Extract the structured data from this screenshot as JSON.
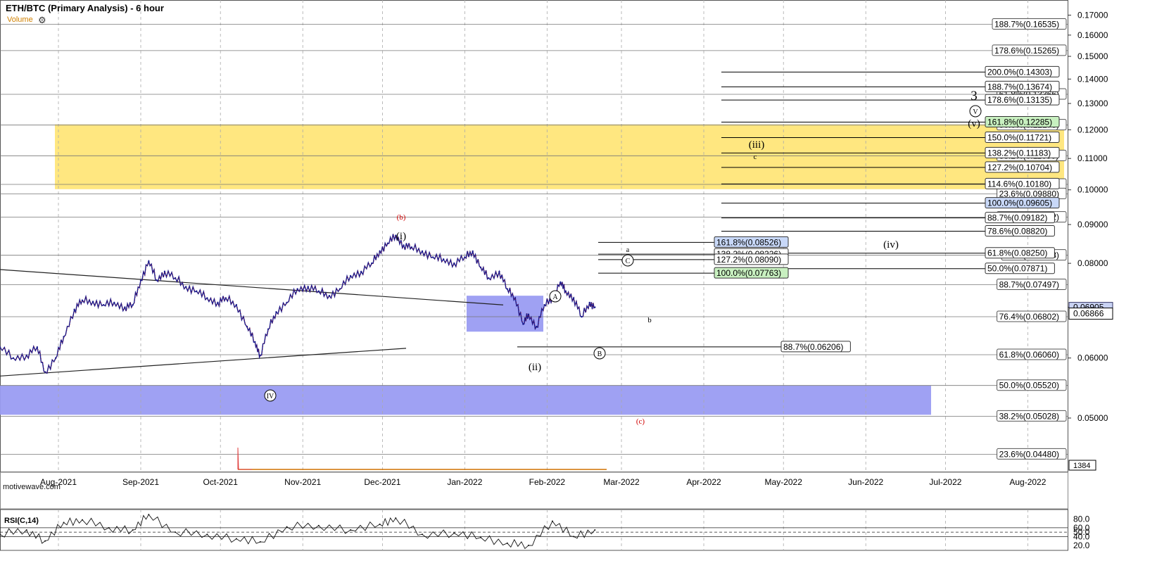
{
  "header": {
    "title": "ETH/BTC (Primary Analysis) - 6 hour",
    "volume_label": "Volume",
    "watermark": "motivewave.com"
  },
  "settings_icon": "gear-icon",
  "chart_data": [
    {
      "type": "line",
      "name": "price",
      "title": "ETH/BTC (Primary Analysis) - 6 hour",
      "x_ticks": [
        "Aug-2021",
        "Sep-2021",
        "Oct-2021",
        "Nov-2021",
        "Dec-2021",
        "Jan-2022",
        "Feb-2022",
        "Mar-2022",
        "Apr-2022",
        "May-2022",
        "Jun-2022",
        "Jul-2022",
        "Aug-2022"
      ],
      "y_ticks": [
        "0.17000",
        "0.16000",
        "0.15000",
        "0.14000",
        "0.13000",
        "0.12000",
        "0.11000",
        "0.10000",
        "0.09000",
        "0.08000",
        "0.07000",
        "0.06000",
        "0.05000"
      ],
      "y_scale": "log",
      "ylim": [
        0.0425,
        0.178
      ],
      "xlim": [
        "2021-07-10",
        "2022-08-16"
      ],
      "grid": true,
      "current_price": "0.06866",
      "price_tag_partial": "0.06905",
      "volume_tag": "1384",
      "series": [
        {
          "x": [
            "2021-07-10",
            "2021-07-15",
            "2021-07-20",
            "2021-07-24",
            "2021-07-27",
            "2021-07-31",
            "2021-08-03",
            "2021-08-07",
            "2021-08-10",
            "2021-08-14",
            "2021-08-18",
            "2021-08-22",
            "2021-08-26",
            "2021-08-29",
            "2021-09-01",
            "2021-09-04",
            "2021-09-07",
            "2021-09-10",
            "2021-09-14",
            "2021-09-18",
            "2021-09-22",
            "2021-09-26",
            "2021-09-30",
            "2021-10-03",
            "2021-10-07",
            "2021-10-11",
            "2021-10-14",
            "2021-10-16",
            "2021-10-19",
            "2021-10-22",
            "2021-10-26",
            "2021-10-30",
            "2021-11-03",
            "2021-11-07",
            "2021-11-11",
            "2021-11-15",
            "2021-11-19",
            "2021-11-23",
            "2021-11-27",
            "2021-11-30",
            "2021-12-03",
            "2021-12-06",
            "2021-12-09",
            "2021-12-12",
            "2021-12-16",
            "2021-12-20",
            "2021-12-24",
            "2021-12-28",
            "2022-01-01",
            "2022-01-04",
            "2022-01-07",
            "2022-01-10",
            "2022-01-14",
            "2022-01-17",
            "2022-01-20",
            "2022-01-23",
            "2022-01-25",
            "2022-01-28",
            "2022-01-31",
            "2022-02-03",
            "2022-02-06",
            "2022-02-08",
            "2022-02-11",
            "2022-02-14",
            "2022-02-17",
            "2022-02-19"
          ],
          "y": [
            0.062,
            0.06,
            0.0605,
            0.062,
            0.0575,
            0.06,
            0.064,
            0.0695,
            0.0715,
            0.0712,
            0.0705,
            0.071,
            0.07,
            0.0705,
            0.076,
            0.0805,
            0.076,
            0.078,
            0.0765,
            0.0745,
            0.0735,
            0.072,
            0.071,
            0.072,
            0.0705,
            0.066,
            0.063,
            0.0605,
            0.0655,
            0.069,
            0.071,
            0.074,
            0.0745,
            0.0735,
            0.0725,
            0.074,
            0.077,
            0.078,
            0.08,
            0.083,
            0.085,
            0.087,
            0.0845,
            0.084,
            0.083,
            0.0815,
            0.081,
            0.08,
            0.0815,
            0.083,
            0.079,
            0.0765,
            0.078,
            0.074,
            0.072,
            0.0665,
            0.0685,
            0.066,
            0.0705,
            0.072,
            0.0755,
            0.0735,
            0.072,
            0.068,
            0.071,
            0.07
          ]
        }
      ],
      "annotations": [
        {
          "text": "(b)",
          "color": "#d00000"
        },
        {
          "text": "(i)",
          "color": "#000000"
        },
        {
          "text": "(ii)",
          "color": "#000000"
        },
        {
          "text": "(iii)",
          "color": "#000000"
        },
        {
          "text": "(iv)",
          "color": "#000000"
        },
        {
          "text": "(v)",
          "color": "#000000"
        },
        {
          "text": "3",
          "color": "#000000"
        },
        {
          "text": "IV",
          "circled": true
        },
        {
          "text": "A",
          "circled": true
        },
        {
          "text": "B",
          "circled": true
        },
        {
          "text": "C",
          "circled": true
        },
        {
          "text": "V",
          "circled": true
        },
        {
          "text": "a",
          "color": "#000000"
        },
        {
          "text": "b",
          "color": "#000000"
        },
        {
          "text": "c",
          "color": "#000000"
        },
        {
          "text": "(c)",
          "color": "#d00000"
        }
      ],
      "fib_labels_right": [
        {
          "label": "188.7%(0.16535)",
          "y": 0.16535
        },
        {
          "label": "178.6%(0.15265)",
          "y": 0.15265
        },
        {
          "label": "61.8%(0.13366)",
          "y": 0.13366
        },
        {
          "label": "50.0%(0.12175)",
          "y": 0.12175
        },
        {
          "label": "38.2%(0.11090)",
          "y": 0.1109
        },
        {
          "label": "27.2%(0.10166)",
          "y": 0.10166
        },
        {
          "label": "23.6%(0.09880)",
          "y": 0.0988
        },
        {
          "label": "14.6%(0.09202)",
          "y": 0.09202
        },
        {
          "label": "0.0%(0.08198)",
          "y": 0.08198
        },
        {
          "label": "88.7%(0.07497)",
          "y": 0.07497
        },
        {
          "label": "76.4%(0.06802)",
          "y": 0.06802
        },
        {
          "label": "61.8%(0.06060)",
          "y": 0.0606
        },
        {
          "label": "50.0%(0.05520)",
          "y": 0.0552
        },
        {
          "label": "38.2%(0.05028)",
          "y": 0.05028
        },
        {
          "label": "23.6%(0.04480)",
          "y": 0.0448
        }
      ],
      "fib_labels_wave3": [
        {
          "label": "200.0%(0.14303)",
          "y": 0.14303
        },
        {
          "label": "188.7%(0.13674)",
          "y": 0.13674
        },
        {
          "label": "178.6%(0.13135)",
          "y": 0.13135
        },
        {
          "label": "161.8%(0.12285)",
          "y": 0.12285,
          "fill": "#c8f0c0"
        },
        {
          "label": "150.0%(0.11721)",
          "y": 0.11721
        },
        {
          "label": "138.2%(0.11183)",
          "y": 0.11183
        },
        {
          "label": "127.2%(0.10704)",
          "y": 0.10704
        },
        {
          "label": "114.6%(0.10180)",
          "y": 0.1018
        },
        {
          "label": "100.0%(0.09605)",
          "y": 0.09605,
          "fill": "#c8d8f8"
        },
        {
          "label": "88.7%(0.09182)",
          "y": 0.09182
        },
        {
          "label": "78.6%(0.08820)",
          "y": 0.0882
        },
        {
          "label": "61.8%(0.08250)",
          "y": 0.0825
        },
        {
          "label": "50.0%(0.07871)",
          "y": 0.07871
        }
      ],
      "fib_labels_c": [
        {
          "label": "161.8%(0.08526)",
          "y": 0.08526,
          "fill": "#c8d8f8"
        },
        {
          "label": "138.2%(0.08226)",
          "y": 0.08226
        },
        {
          "label": "127.2%(0.08090)",
          "y": 0.0809
        },
        {
          "label": "100.0%(0.07763)",
          "y": 0.07763,
          "fill": "#c8f0c0"
        }
      ],
      "fib_label_ii": {
        "label": "88.7%(0.06206)",
        "y": 0.06206
      },
      "zones": [
        {
          "name": "yellow-target-zone",
          "y_range": [
            0.1002,
            0.122
          ],
          "color": "#ffe36a"
        },
        {
          "name": "blue-support-zone",
          "y_range": [
            0.0505,
            0.0552
          ],
          "color": "#9a9cf2"
        },
        {
          "name": "blue-wave-ii-box",
          "y_range": [
            0.065,
            0.0725
          ],
          "color": "#9a9cf2"
        }
      ]
    },
    {
      "type": "line",
      "name": "rsi",
      "title": "RSI(C,14)",
      "y_ticks": [
        "80.0",
        "60.0",
        "50.0",
        "40.0",
        "20.0"
      ],
      "ylim": [
        15,
        95
      ],
      "levels": [
        60,
        50,
        40
      ],
      "series": [
        {
          "x": [
            "2021-07-10",
            "2021-07-20",
            "2021-07-27",
            "2021-08-03",
            "2021-08-10",
            "2021-08-20",
            "2021-08-29",
            "2021-09-04",
            "2021-09-14",
            "2021-09-26",
            "2021-10-07",
            "2021-10-16",
            "2021-10-26",
            "2021-11-07",
            "2021-11-19",
            "2021-11-30",
            "2021-12-06",
            "2021-12-16",
            "2021-12-28",
            "2022-01-07",
            "2022-01-17",
            "2022-01-25",
            "2022-02-03",
            "2022-02-11",
            "2022-02-19"
          ],
          "y": [
            45,
            55,
            30,
            72,
            78,
            60,
            55,
            90,
            50,
            45,
            35,
            28,
            62,
            65,
            55,
            68,
            82,
            45,
            48,
            38,
            25,
            20,
            75,
            40,
            55
          ]
        }
      ]
    }
  ]
}
